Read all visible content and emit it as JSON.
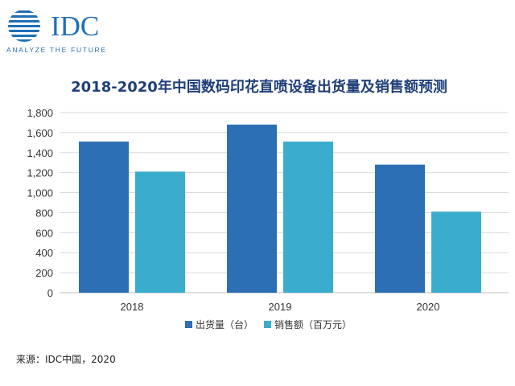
{
  "logo": {
    "wordmark": "IDC",
    "tagline": "ANALYZE THE FUTURE",
    "brand_color": "#1f6fb6"
  },
  "chart_data": {
    "type": "bar",
    "title": "2018-2020年中国数码印花直喷设备出货量及销售额预测",
    "categories": [
      "2018",
      "2019",
      "2020"
    ],
    "series": [
      {
        "name": "出货量（台）",
        "values": [
          1510,
          1680,
          1280
        ],
        "color": "#2c6fb4"
      },
      {
        "name": "销售额（百万元）",
        "values": [
          1210,
          1510,
          810
        ],
        "color": "#3aaccd"
      }
    ],
    "ylim": [
      0,
      1800
    ],
    "yticks": [
      0,
      200,
      400,
      600,
      800,
      1000,
      1200,
      1400,
      1600,
      1800
    ],
    "ytick_labels": [
      "0",
      "200",
      "400",
      "600",
      "800",
      "1,000",
      "1,200",
      "1,400",
      "1,600",
      "1,800"
    ],
    "grid": true,
    "legend_position": "bottom"
  },
  "source": "来源：IDC中国，2020"
}
